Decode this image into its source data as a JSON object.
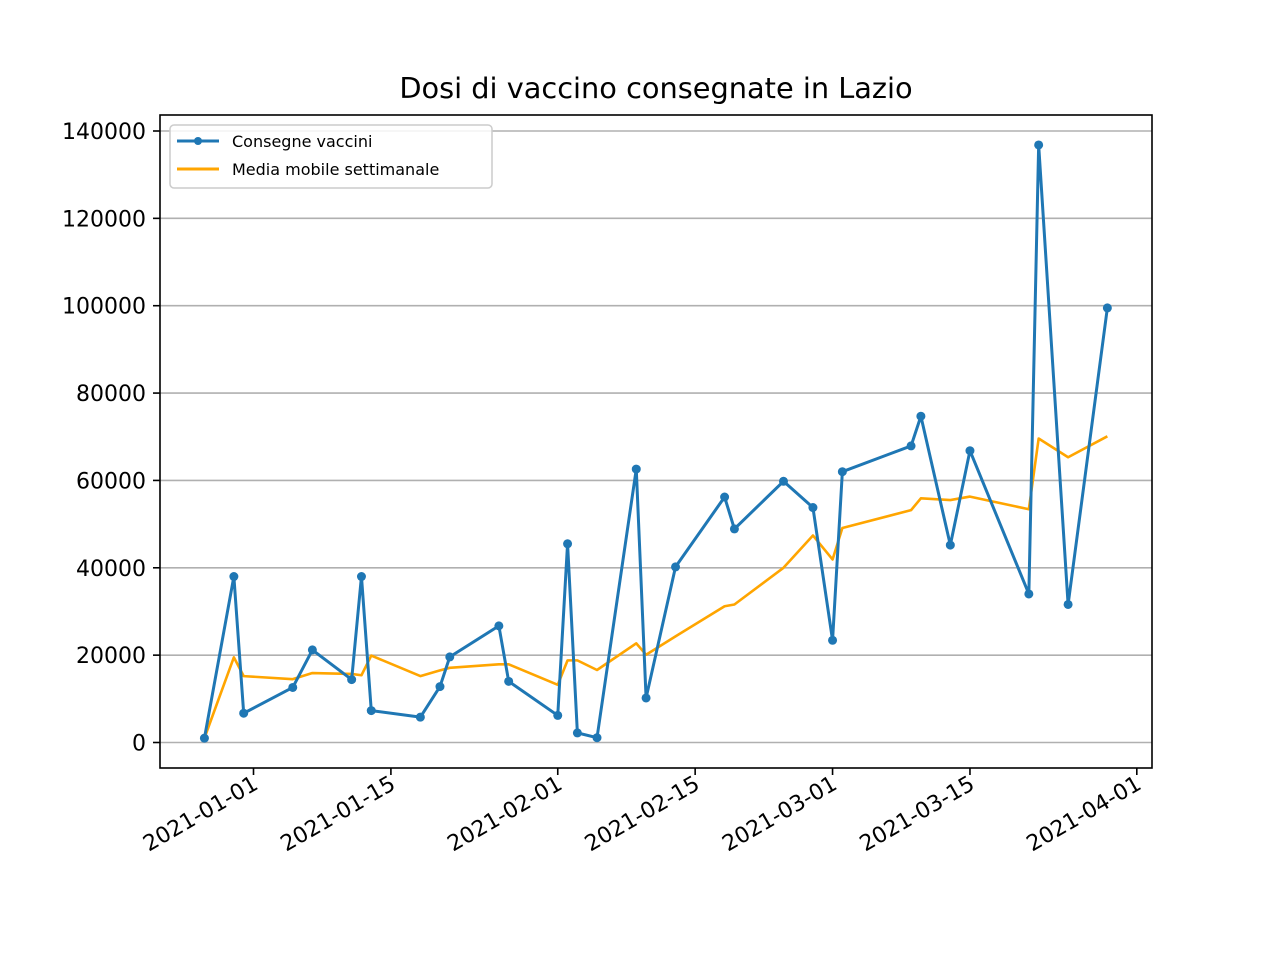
{
  "chart_data": {
    "type": "line",
    "title": "Dosi di vaccino consegnate in Lazio",
    "xlabel": "",
    "ylabel": "",
    "x_axis_type": "date",
    "x_ticks": [
      "2021-01-01",
      "2021-01-15",
      "2021-02-01",
      "2021-02-15",
      "2021-03-01",
      "2021-03-15",
      "2021-04-01"
    ],
    "y_ticks": [
      0,
      20000,
      40000,
      60000,
      80000,
      100000,
      120000,
      140000
    ],
    "xlim": [
      "2021-12-26",
      "2021-04-02"
    ],
    "ylim": [
      -6000,
      146000
    ],
    "grid": "horizontal",
    "legend_position": "upper left",
    "series": [
      {
        "name": "Consegne vaccini",
        "color": "#1f77b4",
        "marker": "circle",
        "x": [
          "2020-12-27",
          "2020-12-30",
          "2020-12-31",
          "2021-01-05",
          "2021-01-07",
          "2021-01-11",
          "2021-01-12",
          "2021-01-13",
          "2021-01-18",
          "2021-01-20",
          "2021-01-21",
          "2021-01-26",
          "2021-01-27",
          "2021-02-01",
          "2021-02-02",
          "2021-02-03",
          "2021-02-05",
          "2021-02-09",
          "2021-02-10",
          "2021-02-13",
          "2021-02-18",
          "2021-02-19",
          "2021-02-24",
          "2021-02-27",
          "2021-03-01",
          "2021-03-02",
          "2021-03-09",
          "2021-03-10",
          "2021-03-13",
          "2021-03-15",
          "2021-03-21",
          "2021-03-22",
          "2021-03-25",
          "2021-03-29"
        ],
        "y": [
          1000,
          38000,
          6700,
          12600,
          21200,
          14400,
          38000,
          7300,
          5800,
          12800,
          19600,
          26700,
          14000,
          6200,
          45500,
          2200,
          1100,
          62600,
          10200,
          40200,
          56200,
          48900,
          59800,
          53800,
          23400,
          62000,
          67900,
          74700,
          45200,
          66800,
          34000,
          136800,
          31600,
          99500
        ]
      },
      {
        "name": "Media mobile settimanale",
        "color": "#ffa500",
        "marker": "none",
        "x": [
          "2020-12-27",
          "2020-12-30",
          "2020-12-31",
          "2021-01-05",
          "2021-01-07",
          "2021-01-11",
          "2021-01-12",
          "2021-01-13",
          "2021-01-18",
          "2021-01-20",
          "2021-01-21",
          "2021-01-26",
          "2021-01-27",
          "2021-02-01",
          "2021-02-02",
          "2021-02-03",
          "2021-02-05",
          "2021-02-09",
          "2021-02-10",
          "2021-02-13",
          "2021-02-18",
          "2021-02-19",
          "2021-02-24",
          "2021-02-27",
          "2021-03-01",
          "2021-03-02",
          "2021-03-09",
          "2021-03-10",
          "2021-03-13",
          "2021-03-15",
          "2021-03-21",
          "2021-03-22",
          "2021-03-25",
          "2021-03-29"
        ],
        "y": [
          1000,
          19500,
          15200,
          14500,
          15900,
          15700,
          15400,
          19900,
          15200,
          16500,
          17100,
          17900,
          17900,
          13200,
          18800,
          18800,
          16600,
          22700,
          20100,
          24300,
          31200,
          31600,
          40000,
          47400,
          41900,
          49100,
          53200,
          55900,
          55500,
          56300,
          53400,
          69600,
          65300,
          70100
        ]
      }
    ]
  }
}
